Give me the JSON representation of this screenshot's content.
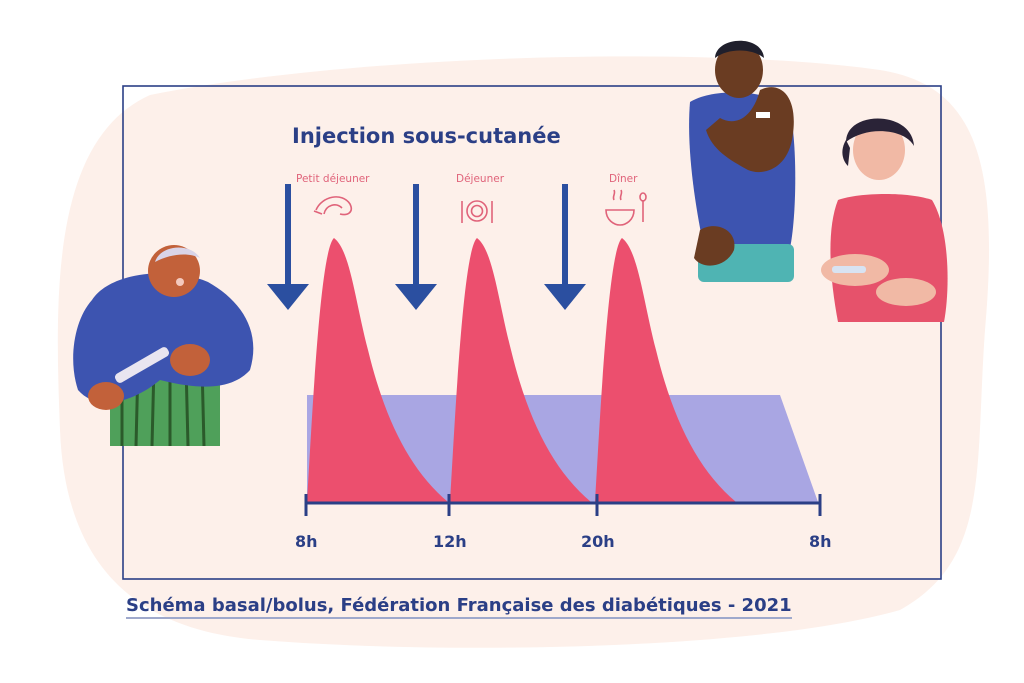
{
  "title": "Injection sous-cutanée",
  "meals": [
    {
      "label": "Petit déjeuner",
      "icon": "croissant-icon"
    },
    {
      "label": "Déjeuner",
      "icon": "plate-cutlery-icon"
    },
    {
      "label": "Dîner",
      "icon": "soup-bowl-icon"
    }
  ],
  "timeline": {
    "ticks": [
      "8h",
      "12h",
      "20h",
      "8h"
    ]
  },
  "caption": "Schéma basal/bolus, Fédération Française des diabétiques - 2021",
  "colors": {
    "frame": "#2b3f86",
    "blob": "#fdf0ea",
    "bolus": "#ec4f6e",
    "basal": "#a9a6e3",
    "arrow": "#2b4fa0",
    "meal_label": "#e0637a"
  }
}
